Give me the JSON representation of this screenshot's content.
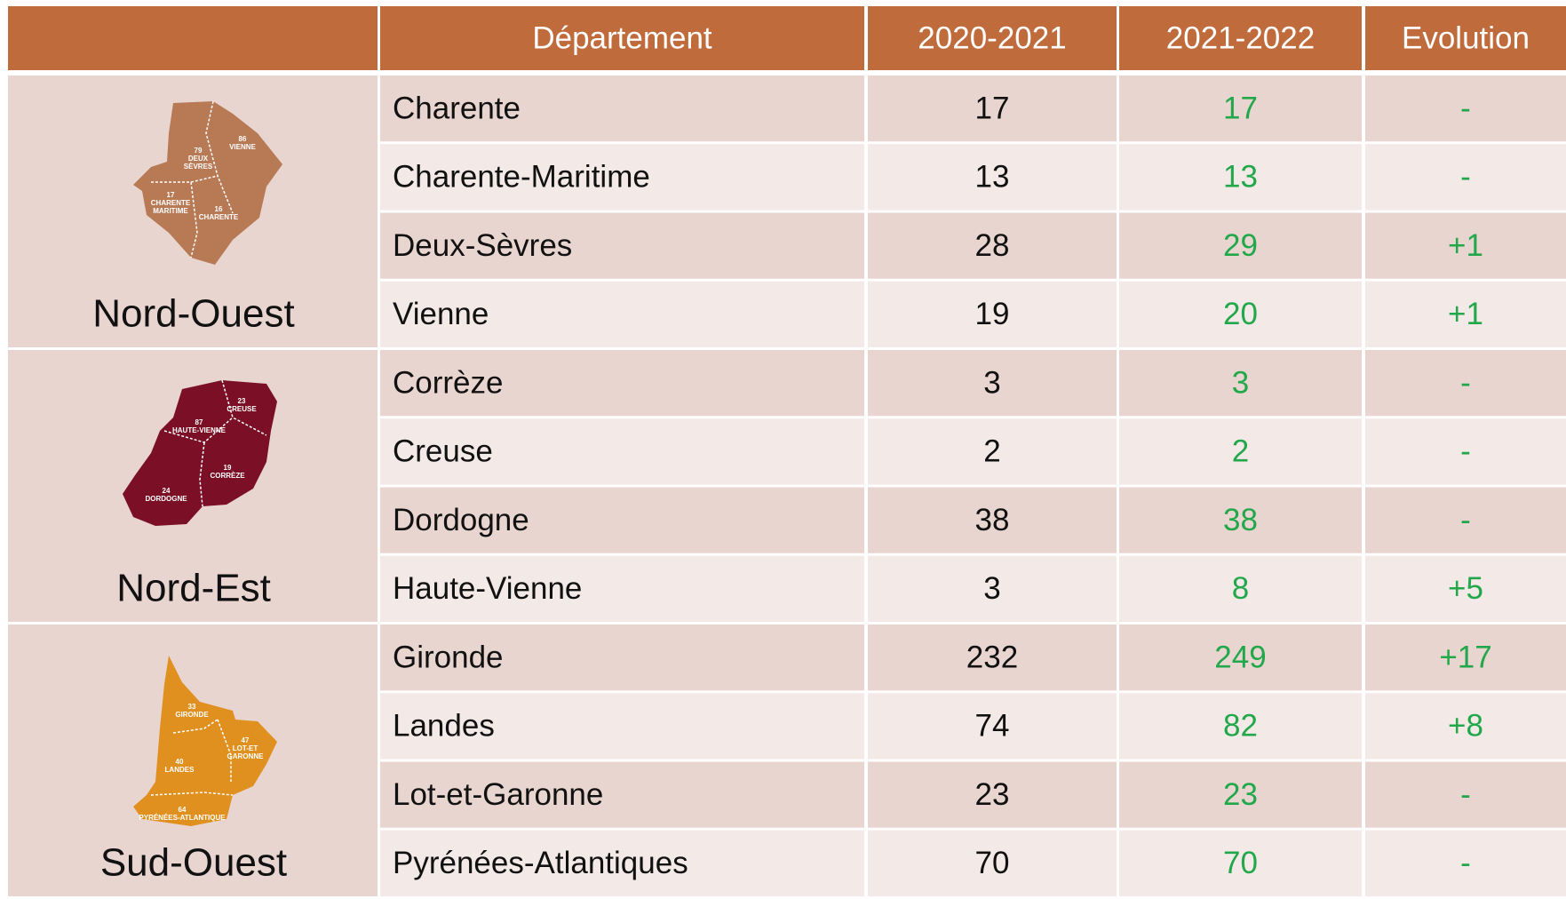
{
  "header": {
    "columns": [
      "Département",
      "2020-2021",
      "2021-2022",
      "Evolution"
    ]
  },
  "regions": [
    {
      "name": "Nord-Ouest",
      "map_labels": [
        [
          "79",
          "DEUX",
          "SÈVRES"
        ],
        [
          "86",
          "VIENNE"
        ],
        [
          "17",
          "CHARENTE",
          "MARITIME"
        ],
        [
          "16",
          "CHARENTE"
        ]
      ],
      "rows": [
        {
          "department": "Charente",
          "y2020_2021": 17,
          "y2021_2022": 17,
          "evolution": "-"
        },
        {
          "department": "Charente-Maritime",
          "y2020_2021": 13,
          "y2021_2022": 13,
          "evolution": "-"
        },
        {
          "department": "Deux-Sèvres",
          "y2020_2021": 28,
          "y2021_2022": 29,
          "evolution": "+1"
        },
        {
          "department": "Vienne",
          "y2020_2021": 19,
          "y2021_2022": 20,
          "evolution": "+1"
        }
      ]
    },
    {
      "name": "Nord-Est",
      "map_labels": [
        [
          "23",
          "CREUSE"
        ],
        [
          "87",
          "HAUTE-VIENNE"
        ],
        [
          "19",
          "CORRÈZE"
        ],
        [
          "24",
          "DORDOGNE"
        ]
      ],
      "rows": [
        {
          "department": "Corrèze",
          "y2020_2021": 3,
          "y2021_2022": 3,
          "evolution": "-"
        },
        {
          "department": "Creuse",
          "y2020_2021": 2,
          "y2021_2022": 2,
          "evolution": "-"
        },
        {
          "department": "Dordogne",
          "y2020_2021": 38,
          "y2021_2022": 38,
          "evolution": "-"
        },
        {
          "department": "Haute-Vienne",
          "y2020_2021": 3,
          "y2021_2022": 8,
          "evolution": "+5"
        }
      ]
    },
    {
      "name": "Sud-Ouest",
      "map_labels": [
        [
          "33",
          "GIRONDE"
        ],
        [
          "47",
          "LOT-ET",
          "GARONNE"
        ],
        [
          "40",
          "LANDES"
        ],
        [
          "64",
          "PYRÉNÉES-ATLANTIQUE"
        ]
      ],
      "rows": [
        {
          "department": "Gironde",
          "y2020_2021": 232,
          "y2021_2022": 249,
          "evolution": "+17"
        },
        {
          "department": "Landes",
          "y2020_2021": 74,
          "y2021_2022": 82,
          "evolution": "+8"
        },
        {
          "department": "Lot-et-Garonne",
          "y2020_2021": 23,
          "y2021_2022": 23,
          "evolution": "-"
        },
        {
          "department": "Pyrénées-Atlantiques",
          "y2020_2021": 70,
          "y2021_2022": 70,
          "evolution": "-"
        }
      ]
    }
  ]
}
